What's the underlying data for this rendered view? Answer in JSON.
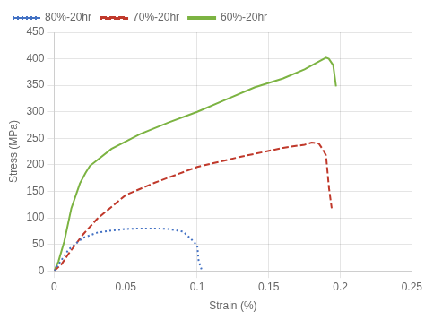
{
  "chart_data": {
    "type": "line",
    "xlabel": "Strain (%)",
    "ylabel": "Stress (MPa)",
    "xlim": [
      0,
      0.25
    ],
    "ylim": [
      0,
      450
    ],
    "xticks": [
      0,
      0.05,
      0.1,
      0.15,
      0.2,
      0.25
    ],
    "yticks": [
      0,
      50,
      100,
      150,
      200,
      250,
      300,
      350,
      400,
      450
    ],
    "grid": true,
    "legend": "upper left",
    "series": [
      {
        "name": "80%-20hr",
        "color": "#4472C4",
        "line_style": "dotted",
        "x": [
          0,
          0.005,
          0.01,
          0.02,
          0.03,
          0.04,
          0.05,
          0.06,
          0.07,
          0.08,
          0.09,
          0.095,
          0.1,
          0.101,
          0.103
        ],
        "values": [
          0,
          20,
          40,
          62,
          72,
          76,
          79,
          80,
          80,
          79,
          74,
          62,
          48,
          18,
          3
        ]
      },
      {
        "name": "70%-20hr",
        "color": "#C0392B",
        "line_style": "dashed",
        "x": [
          0,
          0.005,
          0.01,
          0.02,
          0.03,
          0.05,
          0.07,
          0.1,
          0.13,
          0.16,
          0.175,
          0.18,
          0.185,
          0.188,
          0.19,
          0.192,
          0.194
        ],
        "values": [
          0,
          12,
          32,
          68,
          98,
          143,
          166,
          196,
          215,
          232,
          238,
          242,
          240,
          228,
          218,
          158,
          118
        ]
      },
      {
        "name": "60%-20hr",
        "color": "#7CB342",
        "line_style": "solid",
        "x": [
          0,
          0.003,
          0.007,
          0.012,
          0.018,
          0.022,
          0.025,
          0.04,
          0.06,
          0.08,
          0.1,
          0.12,
          0.14,
          0.16,
          0.175,
          0.185,
          0.19,
          0.192,
          0.195,
          0.197
        ],
        "values": [
          0,
          18,
          55,
          118,
          165,
          185,
          198,
          230,
          258,
          280,
          300,
          323,
          346,
          363,
          380,
          395,
          402,
          400,
          388,
          348
        ]
      }
    ]
  }
}
